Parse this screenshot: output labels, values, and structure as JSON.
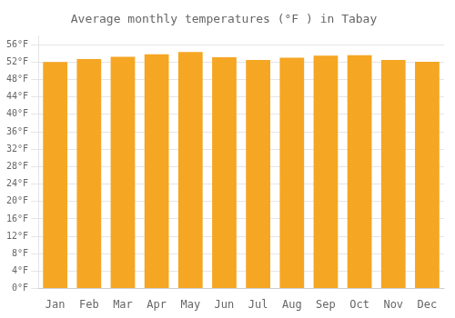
{
  "chart_data": {
    "type": "bar",
    "title": "Average monthly temperatures (°F ) in Tabay",
    "categories": [
      "Jan",
      "Feb",
      "Mar",
      "Apr",
      "May",
      "Jun",
      "Jul",
      "Aug",
      "Sep",
      "Oct",
      "Nov",
      "Dec"
    ],
    "values": [
      52.0,
      52.7,
      53.2,
      53.8,
      54.3,
      53.1,
      52.5,
      53.0,
      53.5,
      53.6,
      52.5,
      52.1
    ],
    "color": "#F5A623",
    "ylim": [
      0,
      58
    ],
    "yticks": [
      {
        "value": 0,
        "label": "0°F"
      },
      {
        "value": 4,
        "label": "4°F"
      },
      {
        "value": 8,
        "label": "8°F"
      },
      {
        "value": 12,
        "label": "12°F"
      },
      {
        "value": 16,
        "label": "16°F"
      },
      {
        "value": 20,
        "label": "20°F"
      },
      {
        "value": 24,
        "label": "24°F"
      },
      {
        "value": 28,
        "label": "28°F"
      },
      {
        "value": 32,
        "label": "32°F"
      },
      {
        "value": 36,
        "label": "36°F"
      },
      {
        "value": 40,
        "label": "40°F"
      },
      {
        "value": 44,
        "label": "44°F"
      },
      {
        "value": 48,
        "label": "48°F"
      },
      {
        "value": 52,
        "label": "52°F"
      },
      {
        "value": 56,
        "label": "56°F"
      }
    ],
    "grid": true
  }
}
